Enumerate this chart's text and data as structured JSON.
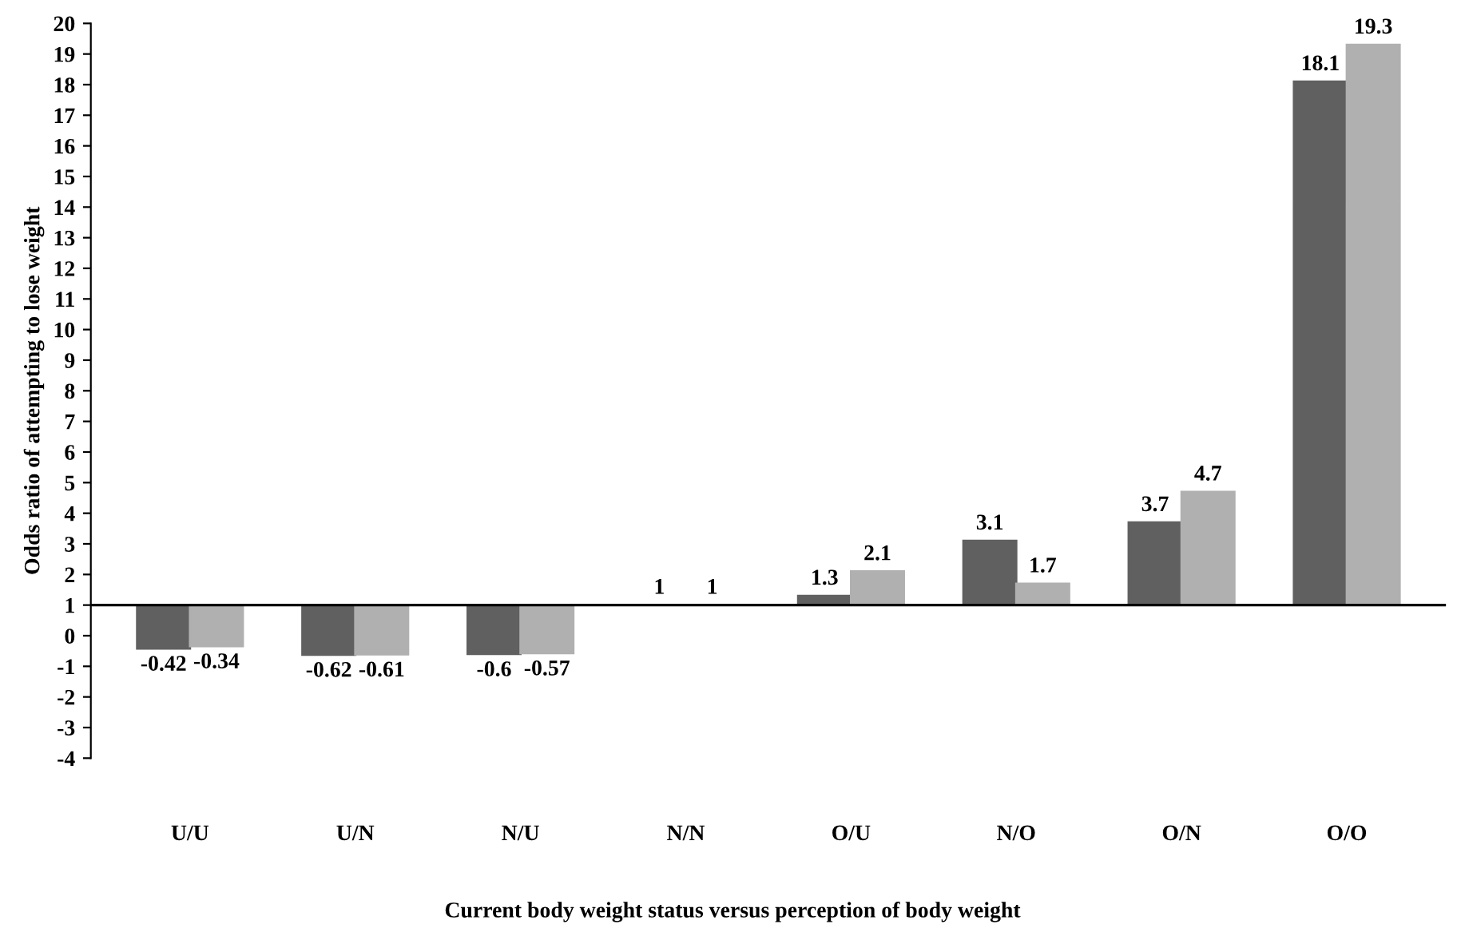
{
  "chart_data": {
    "type": "bar",
    "xlabel": "Current body weight status versus perception of body weight",
    "ylabel": "Odds ratio of attempting to lose weight",
    "categories": [
      "U/U",
      "U/N",
      "N/U",
      "N/N",
      "O/U",
      "N/O",
      "O/N",
      "O/O"
    ],
    "series": [
      {
        "color": "#606060",
        "base": [
          1,
          1,
          1,
          1,
          1,
          1,
          1,
          1
        ],
        "values": [
          -1.42,
          -1.62,
          -1.6,
          0,
          0.3,
          2.1,
          2.7,
          17.1
        ],
        "value_labels": [
          "-0.42",
          "-0.62",
          "-0.6",
          "1",
          "1.3",
          "3.1",
          "3.7",
          "18.1"
        ]
      },
      {
        "color": "#b0b0b0",
        "base": [
          1,
          1,
          1,
          1,
          1,
          1,
          1,
          1
        ],
        "values": [
          -1.34,
          -1.61,
          -1.57,
          0,
          1.1,
          0.7,
          3.7,
          18.3
        ],
        "value_labels": [
          "-0.34",
          "-0.61",
          "-0.57",
          "1",
          "2.1",
          "1.7",
          "4.7",
          "19.3"
        ]
      }
    ],
    "ylim": [
      -4,
      20
    ],
    "yticks": [
      -4,
      -3,
      -2,
      -1,
      0,
      1,
      2,
      3,
      4,
      5,
      6,
      7,
      8,
      9,
      10,
      11,
      12,
      13,
      14,
      15,
      16,
      17,
      18,
      19,
      20
    ],
    "ref_lines": [
      {
        "axis": "y",
        "value": 1,
        "color": "#000000",
        "line_style": "solid"
      }
    ],
    "grid": false,
    "legend": false
  }
}
